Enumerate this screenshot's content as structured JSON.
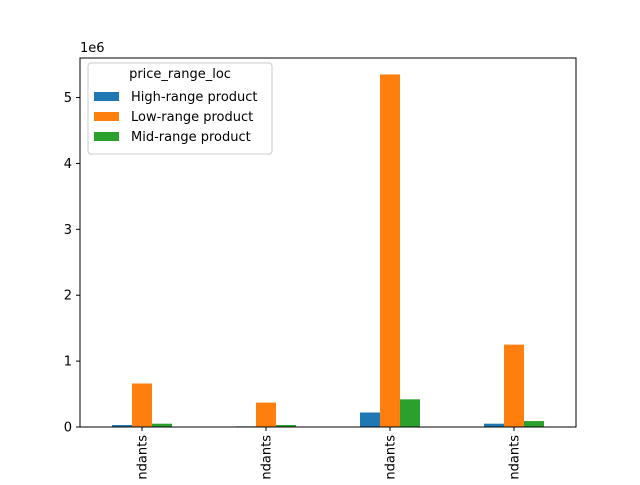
{
  "chart_data": {
    "type": "bar",
    "title": "",
    "xlabel": "",
    "ylabel": "",
    "y_offset_label": "1e6",
    "categories": [
      "ndants",
      "ndants",
      "ndants",
      "ndants"
    ],
    "ylim": [
      0,
      5.6
    ],
    "yticks": [
      0,
      1,
      2,
      3,
      4,
      5
    ],
    "ytick_labels": [
      "0",
      "1",
      "2",
      "3",
      "4",
      "5"
    ],
    "grid": false,
    "legend": {
      "title": "price_range_loc",
      "position": "top-left"
    },
    "series": [
      {
        "name": "High-range product",
        "color": "#1f77b4",
        "values": [
          0.03,
          0.01,
          0.22,
          0.05
        ]
      },
      {
        "name": "Low-range product",
        "color": "#ff7f0e",
        "values": [
          0.66,
          0.37,
          5.35,
          1.25
        ]
      },
      {
        "name": "Mid-range product",
        "color": "#2ca02c",
        "values": [
          0.05,
          0.03,
          0.42,
          0.09
        ]
      }
    ]
  }
}
